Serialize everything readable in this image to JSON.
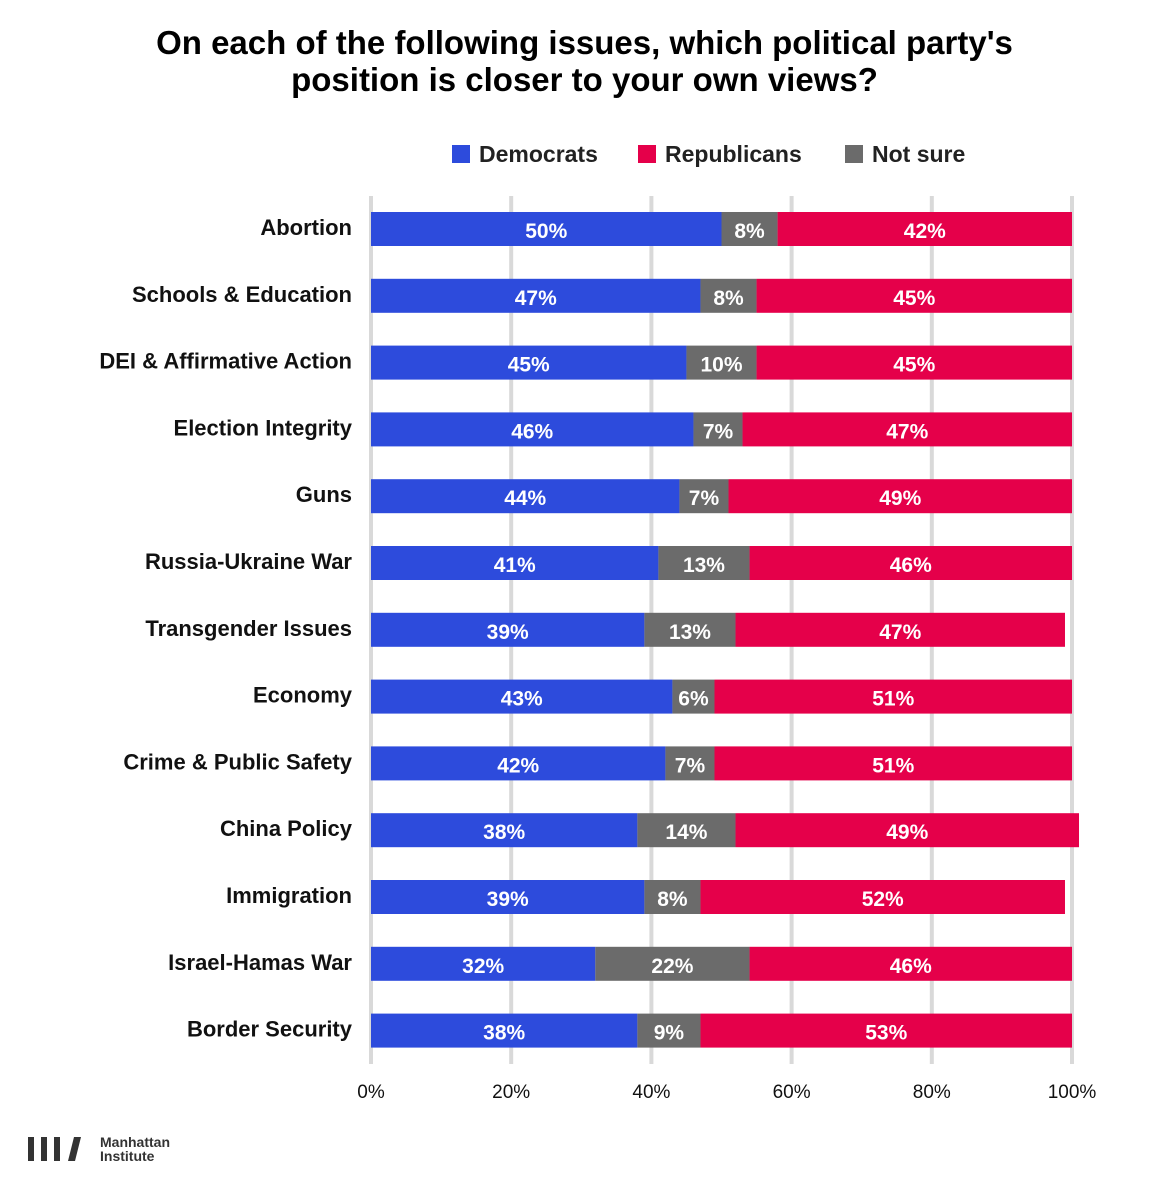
{
  "chart_data": {
    "type": "bar",
    "stacked": true,
    "orientation": "horizontal",
    "title_line1": "On each of the following issues, which political party's",
    "title_line2": "position is closer to your own views?",
    "legend": [
      "Democrats",
      "Republicans",
      "Not sure"
    ],
    "legend_placement": "top",
    "categories": [
      "Abortion",
      "Schools & Education",
      "DEI & Affirmative Action",
      "Election Integrity",
      "Guns",
      "Russia-Ukraine War",
      "Transgender Issues",
      "Economy",
      "Crime & Public Safety",
      "China Policy",
      "Immigration",
      "Israel-Hamas War",
      "Border Security"
    ],
    "series": [
      {
        "name": "Democrats",
        "color": "#2d4bdc",
        "values": [
          50,
          47,
          45,
          46,
          44,
          41,
          39,
          43,
          42,
          38,
          39,
          32,
          38
        ]
      },
      {
        "name": "Not sure",
        "color": "#6b6b6b",
        "values": [
          8,
          8,
          10,
          7,
          7,
          13,
          13,
          6,
          7,
          14,
          8,
          22,
          9
        ]
      },
      {
        "name": "Republicans",
        "color": "#e5004a",
        "values": [
          42,
          45,
          45,
          47,
          49,
          46,
          47,
          51,
          51,
          49,
          52,
          46,
          53
        ]
      }
    ],
    "xlim": [
      0,
      100
    ],
    "xticks": [
      "0%",
      "20%",
      "40%",
      "60%",
      "80%",
      "100%"
    ],
    "grid": true
  },
  "logo": {
    "line1": "Manhattan",
    "line2": "Institute"
  }
}
